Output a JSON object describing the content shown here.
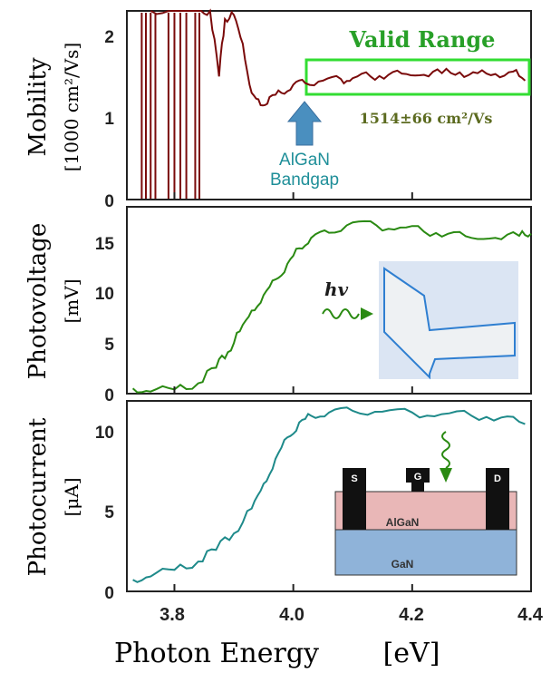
{
  "colors": {
    "mobility": "#7a0a0a",
    "photovoltage": "#2a8a12",
    "photocurrent": "#1e8a8a",
    "valid_box": "#33dd33",
    "arrow": "#4a8fbf",
    "inset_bg": "#dbe5f3",
    "inset_line": "#2f7fd1",
    "algan": "#e9b7b7",
    "gan": "#8fb3d9"
  },
  "x_axis": {
    "label": "Photon Energy",
    "unit": "[eV]",
    "ticks": [
      "3.8",
      "4.0",
      "4.2",
      "4.4"
    ]
  },
  "panels": [
    {
      "ylabel": "Mobility",
      "yunit": "[1000 cm²/Vs]",
      "ticks": [
        "0",
        "1",
        "2"
      ]
    },
    {
      "ylabel": "Photovoltage",
      "yunit": "[mV]",
      "ticks": [
        "0",
        "5",
        "10",
        "15"
      ]
    },
    {
      "ylabel": "Photocurrent",
      "yunit": "[μA]",
      "ticks": [
        "0",
        "5",
        "10"
      ]
    }
  ],
  "annotations": {
    "valid_range": "Valid Range",
    "mobility_value": "1514±66 cm²/Vs",
    "bandgap_line1": "AlGaN",
    "bandgap_line2": "Bandgap",
    "hv": "hv"
  },
  "device": {
    "s": "S",
    "g": "G",
    "d": "D",
    "algan": "AlGaN",
    "gan": "GaN"
  },
  "chart_data": [
    {
      "type": "line",
      "ylabel": "Mobility [1000 cm²/Vs]",
      "xlim": [
        3.72,
        4.4
      ],
      "ylim": [
        0,
        2.3
      ],
      "series": [
        {
          "x": [
            3.76,
            3.8,
            3.84,
            3.86,
            3.875,
            3.885,
            3.9,
            3.915,
            3.93,
            3.945,
            3.96,
            3.98,
            4.0,
            4.02,
            4.05,
            4.08,
            4.1,
            4.13,
            4.16,
            4.19,
            4.22,
            4.25,
            4.28,
            4.31,
            4.34,
            4.37,
            4.39
          ],
          "y": [
            2.3,
            2.3,
            2.3,
            2.3,
            1.5,
            2.2,
            2.25,
            1.9,
            1.3,
            1.15,
            1.25,
            1.3,
            1.4,
            1.42,
            1.45,
            1.47,
            1.48,
            1.5,
            1.52,
            1.53,
            1.52,
            1.54,
            1.55,
            1.54,
            1.53,
            1.56,
            1.45
          ]
        }
      ]
    },
    {
      "type": "line",
      "ylabel": "Photovoltage [mV]",
      "xlim": [
        3.72,
        4.4
      ],
      "ylim": [
        0,
        18
      ],
      "series": [
        {
          "x": [
            3.73,
            3.76,
            3.8,
            3.84,
            3.87,
            3.89,
            3.91,
            3.93,
            3.95,
            3.97,
            3.99,
            4.01,
            4.03,
            4.06,
            4.1,
            4.14,
            4.18,
            4.22,
            4.26,
            4.3,
            4.34,
            4.38,
            4.4
          ],
          "y": [
            0.5,
            0.2,
            0.4,
            1.0,
            2.5,
            4.0,
            6.0,
            8.0,
            9.5,
            11.0,
            12.5,
            14.0,
            15.0,
            15.5,
            16.5,
            16.2,
            16.0,
            15.6,
            15.4,
            15.0,
            15.0,
            15.2,
            15.4
          ]
        }
      ]
    },
    {
      "type": "line",
      "ylabel": "Photocurrent [μA]",
      "xlim": [
        3.72,
        4.4
      ],
      "ylim": [
        0,
        11.5
      ],
      "series": [
        {
          "x": [
            3.73,
            3.76,
            3.8,
            3.84,
            3.87,
            3.9,
            3.93,
            3.95,
            3.97,
            3.99,
            4.01,
            4.03,
            4.06,
            4.1,
            4.15,
            4.2,
            4.25,
            4.3,
            4.35,
            4.39
          ],
          "y": [
            0.7,
            0.9,
            1.3,
            1.8,
            2.5,
            3.5,
            5.0,
            6.5,
            8.0,
            9.3,
            10.2,
            10.6,
            10.8,
            10.9,
            10.85,
            10.8,
            10.7,
            10.6,
            10.5,
            10.1
          ]
        }
      ]
    }
  ]
}
